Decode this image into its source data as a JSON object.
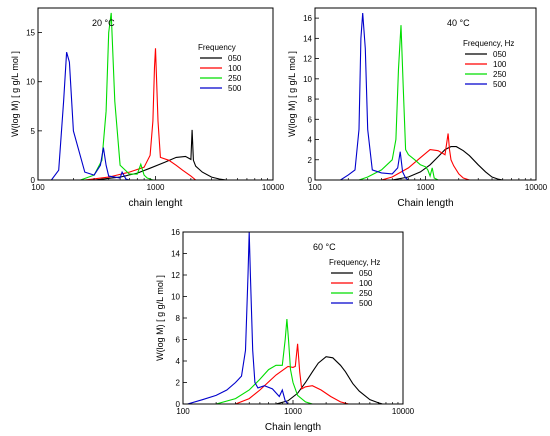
{
  "chart_data": [
    {
      "type": "line",
      "title": "20 °C",
      "xlabel": "chain lenght",
      "ylabel": "W(log M) [ g g/L mol ]",
      "xscale": "log",
      "xlim": [
        100,
        10000
      ],
      "ylim": [
        0,
        17.5
      ],
      "xticks": [
        "100",
        "1000",
        "10000"
      ],
      "yticks": [
        "0",
        "5",
        "10",
        "15"
      ],
      "legend_title": "Frequency",
      "legend_position": "right",
      "series": [
        {
          "name": "050",
          "color": "#000000",
          "x": [
            300,
            500,
            700,
            900,
            1200,
            1500,
            1800,
            2000,
            2050,
            2100,
            2200,
            2500,
            3000,
            3500,
            4000
          ],
          "y": [
            0,
            0.3,
            0.7,
            1.2,
            1.8,
            2.3,
            2.4,
            2.1,
            5.1,
            2.0,
            1.4,
            0.8,
            0.3,
            0.1,
            0
          ]
        },
        {
          "name": "100",
          "color": "#ff0000",
          "x": [
            250,
            400,
            600,
            800,
            900,
            950,
            980,
            1000,
            1050,
            1100,
            1300,
            1500,
            1700,
            2000,
            2200
          ],
          "y": [
            0,
            0.3,
            0.8,
            1.3,
            2.5,
            6,
            11.5,
            13.4,
            6,
            2.3,
            2.0,
            1.5,
            1.0,
            0.4,
            0
          ]
        },
        {
          "name": "250",
          "color": "#00dd00",
          "x": [
            230,
            300,
            350,
            380,
            400,
            420,
            450,
            500,
            600,
            700,
            750,
            800,
            850,
            900,
            950
          ],
          "y": [
            0,
            0.5,
            2,
            7,
            15,
            17,
            8,
            1.5,
            0.6,
            0.6,
            1.6,
            0.5,
            0.2,
            0.1,
            0
          ]
        },
        {
          "name": "500",
          "color": "#0000cc",
          "x": [
            130,
            150,
            165,
            175,
            185,
            200,
            250,
            300,
            340,
            360,
            380,
            400,
            450,
            500,
            520,
            560,
            600
          ],
          "y": [
            0,
            1,
            8,
            13,
            12,
            5,
            0.8,
            0.5,
            1.5,
            3.3,
            1.5,
            0.4,
            0.3,
            0.2,
            0.8,
            0.1,
            0
          ]
        }
      ]
    },
    {
      "type": "line",
      "title": "40 °C",
      "xlabel": "Chain length",
      "ylabel": "W(log M) [ g g/L mol ]",
      "xscale": "log",
      "xlim": [
        100,
        10000
      ],
      "ylim": [
        0,
        17
      ],
      "xticks": [
        "100",
        "1000",
        "10000"
      ],
      "yticks": [
        "0",
        "2",
        "4",
        "6",
        "8",
        "10",
        "12",
        "14",
        "16"
      ],
      "legend_title": "Frequency, Hz",
      "legend_position": "right",
      "series": [
        {
          "name": "050",
          "color": "#000000",
          "x": [
            500,
            700,
            900,
            1100,
            1300,
            1500,
            1700,
            1900,
            2200,
            2500,
            3000,
            3500,
            4000,
            4500,
            5000
          ],
          "y": [
            0,
            0.3,
            0.8,
            1.5,
            2.3,
            3.0,
            3.3,
            3.3,
            2.9,
            2.4,
            1.5,
            0.8,
            0.3,
            0.1,
            0
          ]
        },
        {
          "name": "100",
          "color": "#ff0000",
          "x": [
            400,
            500,
            700,
            900,
            1100,
            1300,
            1500,
            1600,
            1650,
            1700,
            1800,
            2000,
            2200,
            2500
          ],
          "y": [
            0,
            0.3,
            1.2,
            2.2,
            3.0,
            2.9,
            2.5,
            4.6,
            3.0,
            2.0,
            1.4,
            0.6,
            0.2,
            0
          ]
        },
        {
          "name": "250",
          "color": "#00dd00",
          "x": [
            250,
            300,
            400,
            500,
            540,
            570,
            600,
            630,
            660,
            700,
            800,
            900,
            1000,
            1050,
            1100,
            1150,
            1200,
            1300
          ],
          "y": [
            0,
            0.3,
            1.0,
            2.0,
            4,
            11,
            15.3,
            9,
            3,
            2.5,
            2.0,
            1.5,
            1.3,
            1.0,
            0.4,
            1.2,
            0.2,
            0
          ]
        },
        {
          "name": "500",
          "color": "#0000cc",
          "x": [
            170,
            200,
            230,
            250,
            260,
            270,
            285,
            300,
            330,
            400,
            500,
            560,
            590,
            620,
            660,
            700
          ],
          "y": [
            0,
            0.5,
            1.0,
            5,
            14,
            16.5,
            13,
            5,
            1.0,
            0.7,
            0.6,
            1.2,
            2.8,
            0.8,
            0.2,
            0
          ]
        }
      ]
    },
    {
      "type": "line",
      "title": "60 °C",
      "xlabel": "Chain length",
      "ylabel": "W(log M) [ g g/L mol ]",
      "xscale": "log",
      "xlim": [
        100,
        10000
      ],
      "ylim": [
        0,
        16
      ],
      "xticks": [
        "100",
        "1000",
        "10000"
      ],
      "yticks": [
        "0",
        "2",
        "4",
        "6",
        "8",
        "10",
        "12",
        "14",
        "16"
      ],
      "legend_title": "Frequency, Hz",
      "legend_position": "right",
      "series": [
        {
          "name": "050",
          "color": "#000000",
          "x": [
            700,
            900,
            1100,
            1300,
            1500,
            1700,
            2000,
            2300,
            2700,
            3000,
            3500,
            4000,
            5000,
            6000,
            6500
          ],
          "y": [
            0,
            0.3,
            1.0,
            2.0,
            3.0,
            3.8,
            4.4,
            4.3,
            3.6,
            3.0,
            1.9,
            1.2,
            0.4,
            0.1,
            0
          ]
        },
        {
          "name": "100",
          "color": "#ff0000",
          "x": [
            300,
            400,
            500,
            700,
            900,
            1000,
            1050,
            1100,
            1150,
            1200,
            1300,
            1500,
            1800,
            2200,
            2700,
            3200
          ],
          "y": [
            0,
            0.5,
            1.3,
            2.7,
            3.5,
            3.4,
            3.5,
            5.6,
            3,
            1.4,
            1.6,
            1.7,
            1.3,
            0.7,
            0.2,
            0
          ]
        },
        {
          "name": "250",
          "color": "#00dd00",
          "x": [
            200,
            300,
            400,
            500,
            600,
            700,
            800,
            850,
            880,
            910,
            950,
            1000,
            1100,
            1300,
            1500
          ],
          "y": [
            0,
            0.5,
            1.3,
            2.3,
            3.2,
            3.6,
            3.6,
            6,
            7.9,
            6,
            3.2,
            2.0,
            0.8,
            0.2,
            0
          ]
        },
        {
          "name": "500",
          "color": "#0000cc",
          "x": [
            110,
            150,
            200,
            250,
            300,
            340,
            370,
            390,
            400,
            410,
            430,
            450,
            480,
            550,
            650,
            750,
            800,
            850,
            900
          ],
          "y": [
            0,
            0.4,
            0.8,
            1.3,
            2.0,
            2.6,
            5,
            12,
            16,
            12,
            5,
            2.0,
            1.5,
            1.7,
            1.4,
            0.7,
            1.3,
            0.3,
            0
          ]
        }
      ]
    }
  ]
}
